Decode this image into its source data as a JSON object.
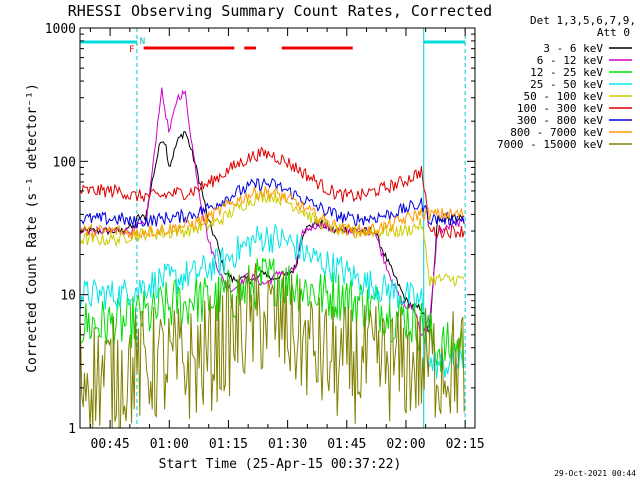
{
  "chart_data": {
    "type": "line",
    "title": "RHESSI Observing Summary Count Rates, Corrected",
    "xlabel": "Start Time (25-Apr-15 00:37:22)",
    "ylabel": "Corrected Count Rate (s⁻¹ detector⁻¹)",
    "yscale": "log",
    "ylim": [
      1,
      1000
    ],
    "xlim_minutes": [
      37.37,
      137.5
    ],
    "y_ticks": [
      "1000",
      "100",
      "10",
      "1"
    ],
    "x_ticks": [
      "00:45",
      "01:00",
      "01:15",
      "01:30",
      "01:45",
      "02:00",
      "02:15"
    ],
    "x_tick_minutes": [
      45,
      60,
      75,
      90,
      105,
      120,
      135
    ],
    "grid": false,
    "legend": {
      "position": "right",
      "header": [
        "Det 1,3,5,6,7,9,",
        "Att 0"
      ]
    },
    "flags": {
      "F_label": "F",
      "N_label": "N",
      "flare_bars_minutes": [
        [
          53.5,
          76.5
        ],
        [
          79.0,
          82.0
        ],
        [
          88.5,
          106.5
        ]
      ],
      "vertical_dashes_minutes": [
        51.8,
        135.0
      ],
      "vertical_solid_minutes": [
        124.5
      ],
      "cyan_bars_minutes": [
        [
          37.4,
          51.8
        ],
        [
          124.5,
          135.0
        ]
      ]
    },
    "series": [
      {
        "name": "3 - 6 keV",
        "color": "#000000",
        "x": [
          37.5,
          48,
          49,
          51,
          52,
          54,
          56,
          58,
          59,
          60,
          62,
          64,
          66,
          68,
          70,
          72,
          74,
          76,
          78,
          80,
          82,
          84,
          86,
          88,
          90,
          92,
          94,
          96,
          98,
          100,
          102,
          104,
          106,
          108,
          110,
          112,
          114,
          116,
          118,
          120,
          122,
          124,
          126,
          128,
          130,
          132,
          135
        ],
        "y": [
          30,
          30,
          32,
          32,
          38,
          38,
          80,
          150,
          140,
          90,
          140,
          170,
          110,
          65,
          35,
          25,
          15,
          13,
          13,
          13,
          13,
          15,
          13,
          14,
          14,
          16,
          30,
          33,
          35,
          32,
          30,
          31,
          31,
          30,
          30,
          30,
          22,
          16,
          12,
          9,
          8,
          8,
          5,
          37,
          38,
          38,
          38
        ]
      },
      {
        "name": "6 - 12 keV",
        "color": "#cc00cc",
        "x": [
          37.5,
          48,
          49,
          51,
          52,
          54,
          56,
          58,
          60,
          62,
          64,
          66,
          68,
          70,
          72,
          74,
          76,
          78,
          80,
          82,
          84,
          86,
          88,
          90,
          92,
          94,
          96,
          98,
          100,
          102,
          104,
          106,
          108,
          110,
          112,
          114,
          116,
          118,
          120,
          122,
          124,
          126,
          128,
          130,
          132,
          135
        ],
        "y": [
          30,
          30,
          30,
          30,
          33,
          33,
          100,
          350,
          160,
          300,
          330,
          120,
          50,
          25,
          17,
          12,
          11,
          12,
          14,
          13,
          12,
          13,
          15,
          14,
          16,
          30,
          32,
          34,
          32,
          30,
          31,
          30,
          30,
          30,
          30,
          20,
          14,
          10,
          8,
          8,
          5,
          6,
          30,
          31,
          34,
          35
        ]
      },
      {
        "name": "12 - 25 keV",
        "color": "#00dd00",
        "x": [
          37.5,
          48,
          50,
          52,
          54,
          56,
          58,
          60,
          62,
          64,
          66,
          68,
          70,
          72,
          74,
          76,
          78,
          80,
          82,
          84,
          86,
          88,
          90,
          92,
          94,
          96,
          98,
          100,
          102,
          104,
          106,
          108,
          110,
          112,
          114,
          116,
          118,
          120,
          122,
          124,
          126,
          128,
          130,
          135
        ],
        "y": [
          6,
          6,
          6,
          7,
          7,
          7,
          8,
          8,
          9,
          8,
          10,
          9,
          9,
          9,
          10,
          10,
          10,
          11,
          12,
          13,
          13,
          13,
          12,
          12,
          11,
          11,
          10,
          10,
          10,
          10,
          9,
          9,
          8,
          8,
          8,
          7,
          7,
          7,
          6,
          6,
          5,
          4,
          4,
          4
        ]
      },
      {
        "name": "25 - 50 keV",
        "color": "#00e5e5",
        "x": [
          37.5,
          48,
          50,
          52,
          54,
          56,
          58,
          60,
          62,
          64,
          66,
          68,
          70,
          72,
          74,
          76,
          78,
          80,
          82,
          84,
          86,
          88,
          90,
          92,
          94,
          96,
          98,
          100,
          102,
          104,
          106,
          108,
          110,
          112,
          114,
          116,
          118,
          120,
          122,
          124,
          126,
          128,
          130,
          135
        ],
        "y": [
          10,
          10,
          11,
          11,
          12,
          12,
          13,
          13,
          13,
          14,
          14,
          15,
          16,
          17,
          18,
          20,
          22,
          24,
          26,
          27,
          27,
          26,
          25,
          23,
          21,
          19,
          18,
          17,
          16,
          15,
          14,
          13,
          12,
          12,
          11,
          11,
          10,
          10,
          9,
          9,
          3,
          3,
          3,
          3
        ]
      },
      {
        "name": "50 - 100 keV",
        "color": "#cccc00",
        "x": [
          37.5,
          48,
          50,
          52,
          54,
          56,
          58,
          60,
          62,
          64,
          66,
          68,
          70,
          72,
          74,
          76,
          78,
          80,
          82,
          84,
          86,
          88,
          90,
          92,
          94,
          96,
          98,
          100,
          102,
          104,
          106,
          108,
          110,
          112,
          114,
          116,
          118,
          120,
          122,
          124,
          126,
          128,
          130,
          135
        ],
        "y": [
          26,
          26,
          28,
          28,
          29,
          29,
          29,
          29,
          30,
          30,
          31,
          32,
          33,
          35,
          38,
          42,
          46,
          50,
          53,
          55,
          55,
          53,
          50,
          46,
          42,
          38,
          35,
          33,
          31,
          30,
          30,
          30,
          30,
          30,
          30,
          30,
          30,
          30,
          32,
          34,
          13,
          13,
          13,
          13
        ]
      },
      {
        "name": "100 - 300 keV",
        "color": "#dd0000",
        "x": [
          37.5,
          48,
          50,
          52,
          54,
          56,
          58,
          60,
          62,
          64,
          66,
          68,
          70,
          72,
          74,
          76,
          78,
          80,
          82,
          84,
          86,
          88,
          90,
          92,
          94,
          96,
          98,
          100,
          102,
          104,
          106,
          108,
          110,
          112,
          114,
          116,
          118,
          120,
          122,
          124,
          126,
          128,
          130,
          135
        ],
        "y": [
          60,
          60,
          55,
          55,
          55,
          55,
          55,
          57,
          58,
          58,
          60,
          64,
          68,
          75,
          82,
          90,
          98,
          105,
          112,
          114,
          112,
          105,
          98,
          90,
          82,
          75,
          68,
          62,
          58,
          55,
          55,
          55,
          57,
          60,
          62,
          65,
          68,
          72,
          78,
          85,
          30,
          30,
          30,
          30
        ]
      },
      {
        "name": "300 - 800 keV",
        "color": "#0000dd",
        "x": [
          37.5,
          48,
          50,
          52,
          54,
          56,
          58,
          60,
          62,
          64,
          66,
          68,
          70,
          72,
          74,
          76,
          78,
          80,
          82,
          84,
          86,
          88,
          90,
          92,
          94,
          96,
          98,
          100,
          102,
          104,
          106,
          108,
          110,
          112,
          114,
          116,
          118,
          120,
          122,
          124,
          126,
          128,
          130,
          135
        ],
        "y": [
          37,
          37,
          35,
          35,
          36,
          36,
          37,
          38,
          38,
          39,
          40,
          42,
          45,
          48,
          52,
          56,
          60,
          64,
          67,
          68,
          67,
          64,
          60,
          56,
          52,
          48,
          45,
          42,
          40,
          38,
          37,
          37,
          37,
          38,
          39,
          40,
          42,
          44,
          46,
          48,
          37,
          37,
          37,
          37
        ]
      },
      {
        "name": "800 - 7000 keV",
        "color": "#ff9900",
        "x": [
          37.5,
          48,
          50,
          52,
          54,
          56,
          58,
          60,
          62,
          64,
          66,
          68,
          70,
          72,
          74,
          76,
          78,
          80,
          82,
          84,
          86,
          88,
          90,
          92,
          94,
          96,
          98,
          100,
          102,
          104,
          106,
          108,
          110,
          112,
          114,
          116,
          118,
          120,
          122,
          124,
          126,
          128,
          130,
          135
        ],
        "y": [
          30,
          30,
          29,
          29,
          30,
          30,
          31,
          31,
          32,
          33,
          34,
          36,
          38,
          41,
          45,
          49,
          52,
          56,
          58,
          59,
          58,
          56,
          52,
          49,
          45,
          41,
          38,
          35,
          33,
          31,
          30,
          30,
          30,
          31,
          32,
          33,
          35,
          37,
          39,
          41,
          40,
          40,
          40,
          40
        ]
      },
      {
        "name": "7000 - 15000 keV",
        "color": "#808000",
        "x": [
          37.5,
          48,
          50,
          52,
          54,
          56,
          58,
          60,
          62,
          64,
          66,
          68,
          70,
          72,
          74,
          76,
          78,
          80,
          82,
          84,
          86,
          88,
          90,
          92,
          94,
          96,
          98,
          100,
          102,
          104,
          106,
          108,
          110,
          112,
          114,
          116,
          118,
          120,
          122,
          124,
          126,
          128,
          130,
          135
        ],
        "y": [
          2.5,
          2.5,
          2.8,
          2.8,
          3,
          3,
          3,
          3,
          3,
          3,
          3,
          3.3,
          3.6,
          4,
          4.5,
          5,
          5.5,
          6,
          6.5,
          6.7,
          6.5,
          6,
          5.5,
          5,
          4.5,
          4,
          3.6,
          3.3,
          3,
          3,
          3,
          3,
          3,
          3,
          3,
          3,
          3,
          3,
          3,
          3,
          3,
          3,
          3,
          3
        ]
      }
    ],
    "footer_timestamp": "29-Oct-2021 00:44"
  }
}
